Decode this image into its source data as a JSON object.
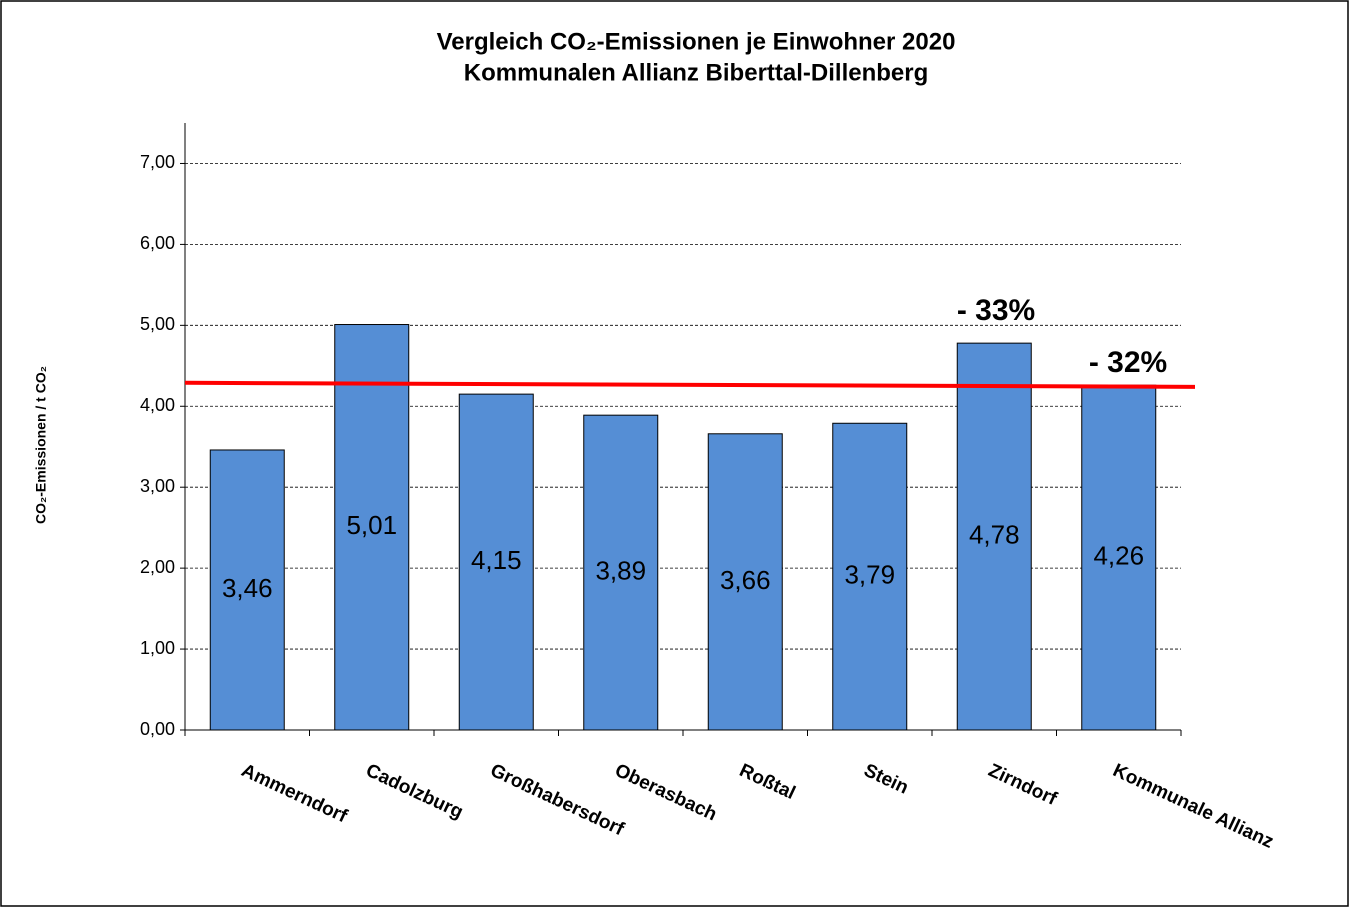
{
  "chart_data": {
    "type": "bar",
    "title": "Vergleich CO₂-Emissionen je Einwohner 2020",
    "subtitle": "Kommunalen Allianz Biberttal-Dillenberg",
    "y_label": "CO₂-Emissionen / t CO₂",
    "categories": [
      "Ammerndorf",
      "Cadolzburg",
      "Großhabersdorf",
      "Oberasbach",
      "Roßtal",
      "Stein",
      "Zirndorf",
      "Kommunale Allianz"
    ],
    "values": [
      3.46,
      5.01,
      4.15,
      3.89,
      3.66,
      3.79,
      4.78,
      4.26
    ],
    "value_labels": [
      "3,46",
      "5,01",
      "4,15",
      "3,89",
      "3,66",
      "3,79",
      "4,78",
      "4,26"
    ],
    "color": "#558ed5",
    "ylim": [
      0,
      7.5
    ],
    "yticks": [
      {
        "value": 0,
        "label": "0,00"
      },
      {
        "value": 1,
        "label": "1,00"
      },
      {
        "value": 2,
        "label": "2,00"
      },
      {
        "value": 3,
        "label": "3,00"
      },
      {
        "value": 4,
        "label": "4,00"
      },
      {
        "value": 5,
        "label": "5,00"
      },
      {
        "value": 6,
        "label": "6,00"
      },
      {
        "value": 7,
        "label": "7,00"
      }
    ],
    "grid": true,
    "reference_line": {
      "color": "#ff0000",
      "values": [
        4.29,
        4.24
      ]
    },
    "annotations": [
      "- 33%",
      "- 32%"
    ]
  }
}
